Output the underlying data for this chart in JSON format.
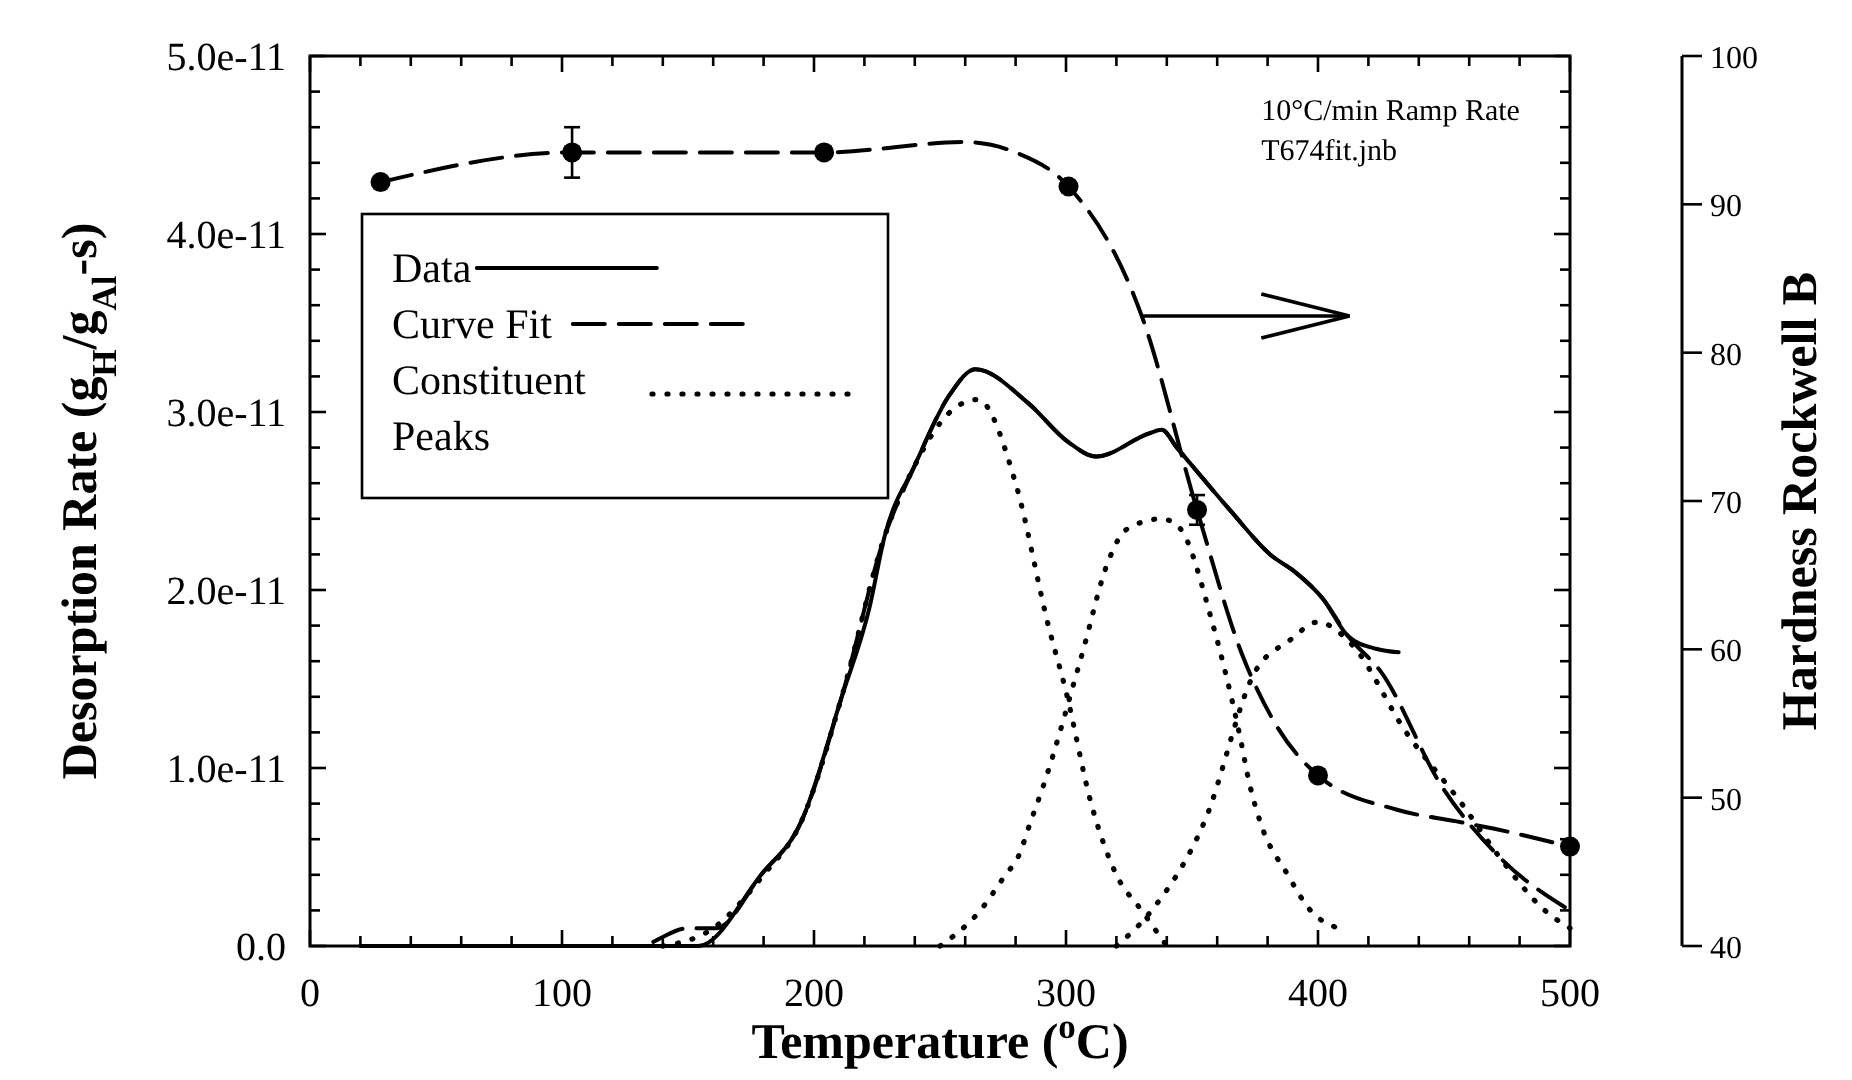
{
  "chart_data": {
    "type": "line",
    "xlabel": "Temperature ($^{o}$C)",
    "ylabel": "Desorption Rate (g$_{H}$/g$_{Al}$-s)",
    "y2label": "Hardness Rockwell B",
    "annotations": [
      "10°C/min Ramp Rate",
      "T674fit.jnb"
    ],
    "xlim": [
      0,
      500
    ],
    "xticks": [
      0,
      {
        "value": 20,
        "label": null
      },
      {
        "value": 40,
        "label": null
      },
      {
        "value": 60,
        "label": null
      },
      {
        "value": 80,
        "label": null
      },
      100,
      {
        "value": 120,
        "label": null
      },
      {
        "value": 140,
        "label": null
      },
      {
        "value": 160,
        "label": null
      },
      {
        "value": 180,
        "label": null
      },
      200,
      {
        "value": 220,
        "label": null
      },
      {
        "value": 240,
        "label": null
      },
      {
        "value": 260,
        "label": null
      },
      {
        "value": 280,
        "label": null
      },
      300,
      {
        "value": 320,
        "label": null
      },
      {
        "value": 340,
        "label": null
      },
      {
        "value": 360,
        "label": null
      },
      {
        "value": 380,
        "label": null
      },
      400,
      {
        "value": 420,
        "label": null
      },
      {
        "value": 440,
        "label": null
      },
      {
        "value": 460,
        "label": null
      },
      {
        "value": 480,
        "label": null
      },
      500
    ],
    "ylim": [
      0,
      5e-11
    ],
    "yticks": [
      {
        "value": 0,
        "label": "0.0"
      },
      {
        "value": 2e-12,
        "label": null
      },
      {
        "value": 4e-12,
        "label": null
      },
      {
        "value": 6e-12,
        "label": null
      },
      {
        "value": 8e-12,
        "label": null
      },
      {
        "value": 1e-11,
        "label": "1.0e-11"
      },
      {
        "value": 1.2e-11,
        "label": null
      },
      {
        "value": 1.4e-11,
        "label": null
      },
      {
        "value": 1.6e-11,
        "label": null
      },
      {
        "value": 1.8e-11,
        "label": null
      },
      {
        "value": 2e-11,
        "label": "2.0e-11"
      },
      {
        "value": 2.2e-11,
        "label": null
      },
      {
        "value": 2.4e-11,
        "label": null
      },
      {
        "value": 2.6e-11,
        "label": null
      },
      {
        "value": 2.8e-11,
        "label": null
      },
      {
        "value": 3e-11,
        "label": "3.0e-11"
      },
      {
        "value": 3.2e-11,
        "label": null
      },
      {
        "value": 3.4e-11,
        "label": null
      },
      {
        "value": 3.6e-11,
        "label": null
      },
      {
        "value": 3.8e-11,
        "label": null
      },
      {
        "value": 4e-11,
        "label": "4.0e-11"
      },
      {
        "value": 4.2e-11,
        "label": null
      },
      {
        "value": 4.4e-11,
        "label": null
      },
      {
        "value": 4.6e-11,
        "label": null
      },
      {
        "value": 4.8e-11,
        "label": null
      },
      {
        "value": 5e-11,
        "label": "5.0e-11"
      }
    ],
    "y2lim": [
      40,
      100
    ],
    "y2ticks": [
      40,
      50,
      60,
      70,
      80,
      90,
      100
    ],
    "grid": false,
    "legend": "top left",
    "series": [
      {
        "name": "Data",
        "line_style": "solid",
        "color": "#000000",
        "x": [
          20,
          100,
          140,
          154,
          179,
          195,
          211,
          222,
          228,
          240,
          254,
          264,
          285,
          301,
          312,
          333,
          338,
          344,
          365,
          381,
          391,
          402,
          412,
          423,
          432
        ],
        "values": [
          0,
          0,
          0,
          0,
          4e-12,
          7e-12,
          1.4e-11,
          1.9e-11,
          2.3e-11,
          2.7e-11,
          3.1e-11,
          3.24e-11,
          3.05e-11,
          2.83e-11,
          2.75e-11,
          2.88e-11,
          2.9e-11,
          2.8e-11,
          2.45e-11,
          2.2e-11,
          2.1e-11,
          1.95e-11,
          1.74e-11,
          1.67e-11,
          1.65e-11
        ]
      },
      {
        "name": "Curve Fit",
        "line_style": "dashed",
        "color": "#000000",
        "x": [
          100,
          130,
          150,
          161,
          179,
          195,
          211,
          228,
          240,
          254,
          264,
          285,
          301,
          312,
          333,
          338,
          344,
          365,
          381,
          391,
          402,
          412,
          425,
          449,
          472,
          500
        ],
        "values": [
          0,
          0,
          1e-12,
          1e-12,
          4e-12,
          7e-12,
          1.4e-11,
          2.3e-11,
          2.7e-11,
          3.1e-11,
          3.24e-11,
          3.05e-11,
          2.83e-11,
          2.75e-11,
          2.88e-11,
          2.9e-11,
          2.8e-11,
          2.45e-11,
          2.2e-11,
          2.1e-11,
          1.95e-11,
          1.74e-11,
          1.54e-11,
          9e-12,
          5e-12,
          2e-12
        ]
      },
      {
        "name": "Constituent Peaks",
        "line_style": "dotted",
        "color": "#000000",
        "x": [
          140,
          160,
          180,
          195,
          211,
          228,
          240,
          254,
          265,
          280,
          293,
          300,
          310,
          320,
          330,
          340
        ],
        "values": [
          0,
          1e-12,
          4e-12,
          7e-12,
          1.4e-11,
          2.3e-11,
          2.7e-11,
          3e-11,
          3.07e-11,
          2.6e-11,
          1.8e-11,
          1.43e-11,
          8e-12,
          4e-12,
          2e-12,
          0
        ]
      },
      {
        "line_style": "dotted",
        "color": "#000000",
        "x": [
          250,
          266,
          276,
          281,
          286,
          291,
          306,
          317,
          324,
          338,
          345,
          358,
          369,
          373,
          377,
          388,
          397,
          408
        ],
        "values": [
          0,
          2e-12,
          4e-12,
          5e-12,
          7e-12,
          9e-12,
          1.62e-11,
          2.17e-11,
          2.34e-11,
          2.4e-11,
          2.35e-11,
          1.82e-11,
          1.18e-11,
          9e-12,
          7e-12,
          4e-12,
          2e-12,
          1e-12
        ]
      },
      {
        "line_style": "dotted",
        "color": "#000000",
        "x": [
          320,
          334,
          355,
          375,
          389,
          400,
          413,
          435,
          457,
          472,
          490,
          500
        ],
        "values": [
          0,
          2e-12,
          7e-12,
          1.54e-11,
          1.72e-11,
          1.82e-11,
          1.7e-11,
          1.2e-11,
          8e-12,
          5e-12,
          2e-12,
          1e-12
        ]
      },
      {
        "axis": "y2",
        "line_style": "dashed",
        "color": "#000000",
        "x": [
          28,
          104,
          204,
          260,
          280,
          301,
          330,
          352,
          370,
          383,
          400,
          431,
          455,
          470,
          500
        ],
        "values": [
          91.5,
          93.5,
          93.5,
          94.2,
          93.5,
          91.2,
          82.5,
          69.4,
          59.6,
          55,
          51.5,
          49.2,
          48.4,
          47.9,
          46.7
        ]
      },
      {
        "type": "scatter",
        "axis": "y2",
        "marker": "circle",
        "color": "#000000",
        "x": [
          28,
          104,
          204,
          301,
          352,
          400,
          500
        ],
        "values": [
          91.5,
          93.5,
          93.5,
          91.2,
          69.4,
          51.5,
          46.7
        ],
        "errors": [
          null,
          1.7,
          null,
          null,
          1,
          null,
          null
        ]
      }
    ]
  }
}
